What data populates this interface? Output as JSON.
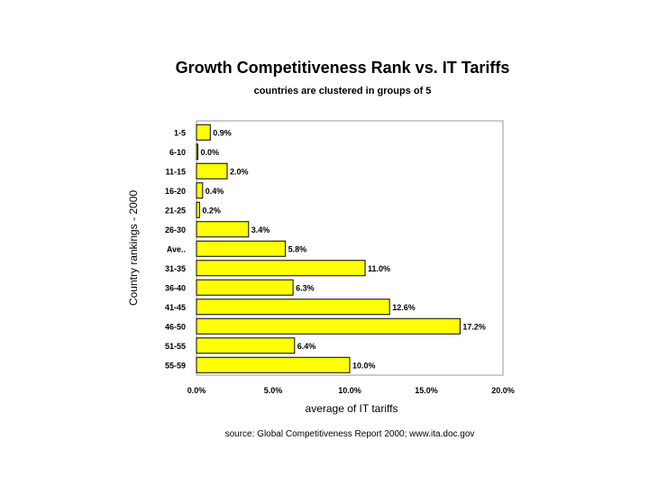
{
  "chart_data": {
    "type": "bar",
    "orientation": "horizontal",
    "title": "Growth Competitiveness Rank vs. IT Tariffs",
    "subtitle": "countries are clustered in groups of 5",
    "xlabel": "average of IT tariffs",
    "ylabel": "Country rankings - 2000",
    "xlim": [
      0,
      20
    ],
    "xticks": [
      0,
      5,
      10,
      15,
      20
    ],
    "xtick_labels": [
      "0.0%",
      "5.0%",
      "10.0%",
      "15.0%",
      "20.0%"
    ],
    "categories": [
      "1-5",
      "6-10",
      "11-15",
      "16-20",
      "21-25",
      "26-30",
      "Ave..",
      "31-35",
      "36-40",
      "41-45",
      "46-50",
      "51-55",
      "55-59"
    ],
    "values": [
      0.9,
      0.0,
      2.0,
      0.4,
      0.2,
      3.4,
      5.8,
      11.0,
      6.3,
      12.6,
      17.2,
      6.4,
      10.0
    ],
    "value_labels": [
      "0.9%",
      "0.0%",
      "2.0%",
      "0.4%",
      "0.2%",
      "3.4%",
      "5.8%",
      "11.0%",
      "6.3%",
      "12.6%",
      "17.2%",
      "6.4%",
      "10.0%"
    ],
    "bar_color": "#FFFF00",
    "bar_edge_color": "#000000",
    "source": "source: Global Competitiveness Report 2000; www.ita.doc.gov"
  }
}
